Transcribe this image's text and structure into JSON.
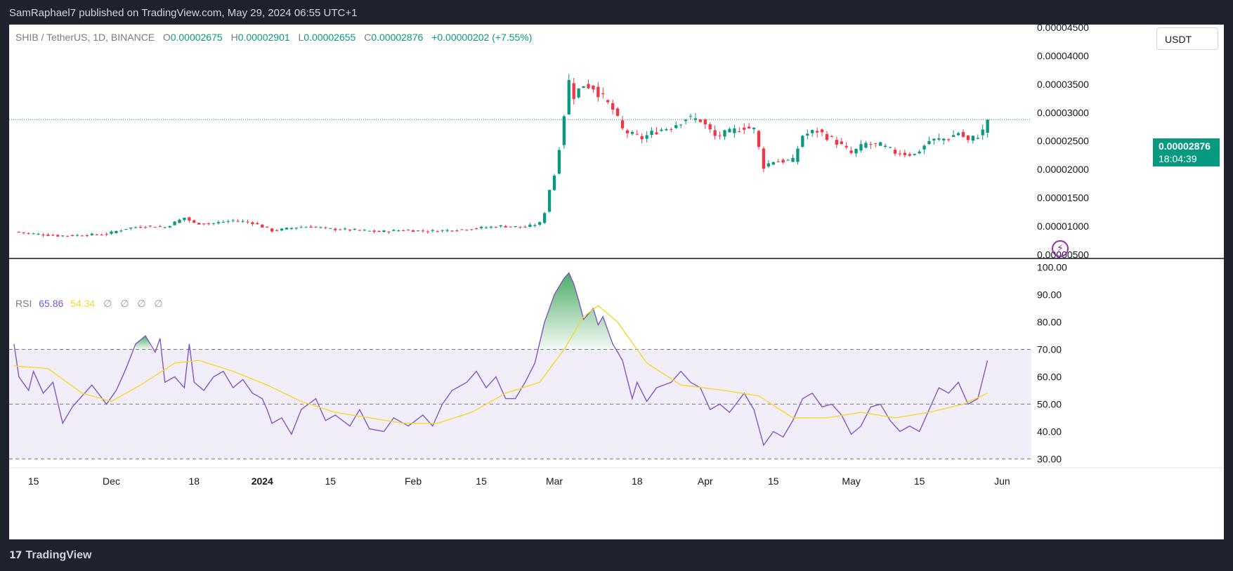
{
  "header": {
    "published_text": "SamRaphael7 published on TradingView.com, May 29, 2024 06:55 UTC+1"
  },
  "footer": {
    "brand": "TradingView",
    "logo_mark": "17"
  },
  "legend": {
    "symbol": "SHIB / TetherUS, 1D, BINANCE",
    "open_key": "O",
    "open": "0.00002675",
    "high_key": "H",
    "high": "0.00002901",
    "low_key": "L",
    "low": "0.00002655",
    "close_key": "C",
    "close": "0.00002876",
    "change": "+0.00000202 (+7.55%)"
  },
  "rsi_legend": {
    "name": "RSI",
    "rsi": "65.86",
    "ma": "54.34",
    "extras": [
      "∅",
      "∅",
      "∅",
      "∅"
    ]
  },
  "currency_button": "USDT",
  "price_badge": {
    "price": "0.00002876",
    "countdown": "18:04:39"
  },
  "alert_glyph": "⚡",
  "colors": {
    "up": "#089981",
    "down": "#f23645",
    "rsi_line": "#7e57c2",
    "rsi_ma": "#f7d72c",
    "rsi_band": "#7e57c2",
    "overbought_fill": "#2e9d4a"
  },
  "chart_data": [
    {
      "type": "candlestick",
      "title": "",
      "y_axis": {
        "ticks": [
          5e-06,
          1e-05,
          1.5e-05,
          2e-05,
          2.5e-05,
          3e-05,
          3.5e-05,
          4e-05,
          4.5e-05
        ],
        "tick_labels": [
          "0.00000500",
          "0.00001000",
          "0.00001500",
          "0.00002000",
          "0.00002500",
          "0.00003000",
          "0.00003500",
          "0.00004000",
          "0.00004500"
        ],
        "ylim": [
          4.3e-06,
          4.55e-05
        ]
      },
      "last_price": 2.876e-05,
      "series": [
        {
          "anchors": [
            [
              "2023-11-11",
              9e-06
            ],
            [
              "2023-11-14",
              8.7e-06
            ],
            [
              "2023-11-20",
              8.3e-06
            ],
            [
              "2023-11-25",
              8.4e-06
            ],
            [
              "2023-11-30",
              8.6e-06
            ],
            [
              "2023-12-04",
              9.6e-06
            ],
            [
              "2023-12-08",
              1e-05
            ],
            [
              "2023-12-12",
              9.8e-06
            ],
            [
              "2023-12-16",
              1.15e-05
            ],
            [
              "2023-12-18",
              1.05e-05
            ],
            [
              "2023-12-22",
              1.05e-05
            ],
            [
              "2023-12-26",
              1.1e-05
            ],
            [
              "2023-12-30",
              1.06e-05
            ],
            [
              "2024-01-03",
              9.2e-06
            ],
            [
              "2024-01-05",
              9.4e-06
            ],
            [
              "2024-01-08",
              9.8e-06
            ],
            [
              "2024-01-11",
              9.9e-06
            ],
            [
              "2024-01-15",
              9.5e-06
            ],
            [
              "2024-01-20",
              9.3e-06
            ],
            [
              "2024-01-25",
              9e-06
            ],
            [
              "2024-01-30",
              9.3e-06
            ],
            [
              "2024-02-04",
              9.1e-06
            ],
            [
              "2024-02-09",
              9.3e-06
            ],
            [
              "2024-02-14",
              9.6e-06
            ],
            [
              "2024-02-19",
              1e-05
            ],
            [
              "2024-02-24",
              9.8e-06
            ],
            [
              "2024-02-27",
              1.05e-05
            ],
            [
              "2024-02-28",
              1.25e-05
            ],
            [
              "2024-02-29",
              1.65e-05
            ],
            [
              "2024-03-01",
              1.9e-05
            ],
            [
              "2024-03-02",
              2.4e-05
            ],
            [
              "2024-03-04",
              3.55e-05
            ],
            [
              "2024-03-05",
              3.3e-05
            ],
            [
              "2024-03-07",
              3.5e-05
            ],
            [
              "2024-03-09",
              3.45e-05
            ],
            [
              "2024-03-11",
              3.25e-05
            ],
            [
              "2024-03-13",
              3.05e-05
            ],
            [
              "2024-03-15",
              2.7e-05
            ],
            [
              "2024-03-17",
              2.6e-05
            ],
            [
              "2024-03-19",
              2.55e-05
            ],
            [
              "2024-03-22",
              2.68e-05
            ],
            [
              "2024-03-25",
              2.75e-05
            ],
            [
              "2024-03-28",
              2.9e-05
            ],
            [
              "2024-03-31",
              2.87e-05
            ],
            [
              "2024-04-03",
              2.58e-05
            ],
            [
              "2024-04-06",
              2.65e-05
            ],
            [
              "2024-04-09",
              2.75e-05
            ],
            [
              "2024-04-11",
              2.7e-05
            ],
            [
              "2024-04-13",
              2.05e-05
            ],
            [
              "2024-04-15",
              2.15e-05
            ],
            [
              "2024-04-19",
              2.15e-05
            ],
            [
              "2024-04-21",
              2.6e-05
            ],
            [
              "2024-04-24",
              2.68e-05
            ],
            [
              "2024-04-28",
              2.48e-05
            ],
            [
              "2024-05-01",
              2.28e-05
            ],
            [
              "2024-05-04",
              2.45e-05
            ],
            [
              "2024-05-07",
              2.42e-05
            ],
            [
              "2024-05-10",
              2.3e-05
            ],
            [
              "2024-05-14",
              2.26e-05
            ],
            [
              "2024-05-17",
              2.5e-05
            ],
            [
              "2024-05-21",
              2.55e-05
            ],
            [
              "2024-05-23",
              2.65e-05
            ],
            [
              "2024-05-25",
              2.5e-05
            ],
            [
              "2024-05-27",
              2.6e-05
            ],
            [
              "2024-05-28",
              2.67e-05
            ],
            [
              "2024-05-29",
              2.876e-05
            ]
          ]
        }
      ]
    },
    {
      "type": "line",
      "title": "",
      "y_axis": {
        "ticks": [
          30,
          40,
          50,
          60,
          70,
          80,
          90,
          100
        ],
        "tick_labels": [
          "30.00",
          "40.00",
          "50.00",
          "60.00",
          "70.00",
          "80.00",
          "90.00",
          "100.00"
        ],
        "ylim": [
          27,
          103
        ]
      },
      "bands": {
        "upper": 70,
        "middle": 50,
        "lower": 30
      },
      "series": [
        {
          "name": "RSI",
          "color": "#7e57c2",
          "anchors": [
            [
              "2023-11-11",
              72
            ],
            [
              "2023-11-12",
              60
            ],
            [
              "2023-11-14",
              55
            ],
            [
              "2023-11-15",
              62
            ],
            [
              "2023-11-17",
              54
            ],
            [
              "2023-11-19",
              58
            ],
            [
              "2023-11-21",
              43
            ],
            [
              "2023-11-23",
              49
            ],
            [
              "2023-11-27",
              57
            ],
            [
              "2023-11-30",
              50
            ],
            [
              "2023-12-02",
              55
            ],
            [
              "2023-12-04",
              63
            ],
            [
              "2023-12-06",
              72
            ],
            [
              "2023-12-08",
              75
            ],
            [
              "2023-12-10",
              69
            ],
            [
              "2023-12-11",
              74
            ],
            [
              "2023-12-12",
              58
            ],
            [
              "2023-12-14",
              60
            ],
            [
              "2023-12-16",
              56
            ],
            [
              "2023-12-17",
              72
            ],
            [
              "2023-12-18",
              58
            ],
            [
              "2023-12-20",
              55
            ],
            [
              "2023-12-22",
              60
            ],
            [
              "2023-12-24",
              62
            ],
            [
              "2023-12-26",
              56
            ],
            [
              "2023-12-28",
              59
            ],
            [
              "2023-12-30",
              54
            ],
            [
              "2024-01-01",
              52
            ],
            [
              "2024-01-02",
              48
            ],
            [
              "2024-01-03",
              43
            ],
            [
              "2024-01-05",
              45
            ],
            [
              "2024-01-07",
              39
            ],
            [
              "2024-01-09",
              48
            ],
            [
              "2024-01-12",
              52
            ],
            [
              "2024-01-14",
              44
            ],
            [
              "2024-01-16",
              46
            ],
            [
              "2024-01-19",
              42
            ],
            [
              "2024-01-21",
              48
            ],
            [
              "2024-01-23",
              41
            ],
            [
              "2024-01-26",
              40
            ],
            [
              "2024-01-28",
              45
            ],
            [
              "2024-01-31",
              42
            ],
            [
              "2024-02-03",
              46
            ],
            [
              "2024-02-05",
              42
            ],
            [
              "2024-02-07",
              50
            ],
            [
              "2024-02-09",
              55
            ],
            [
              "2024-02-12",
              58
            ],
            [
              "2024-02-14",
              62
            ],
            [
              "2024-02-16",
              56
            ],
            [
              "2024-02-18",
              60
            ],
            [
              "2024-02-20",
              52
            ],
            [
              "2024-02-22",
              52
            ],
            [
              "2024-02-24",
              58
            ],
            [
              "2024-02-26",
              65
            ],
            [
              "2024-02-28",
              80
            ],
            [
              "2024-03-01",
              90
            ],
            [
              "2024-03-03",
              96
            ],
            [
              "2024-03-04",
              98
            ],
            [
              "2024-03-05",
              94
            ],
            [
              "2024-03-06",
              88
            ],
            [
              "2024-03-07",
              81
            ],
            [
              "2024-03-09",
              85
            ],
            [
              "2024-03-10",
              79
            ],
            [
              "2024-03-11",
              82
            ],
            [
              "2024-03-13",
              72
            ],
            [
              "2024-03-15",
              66
            ],
            [
              "2024-03-17",
              52
            ],
            [
              "2024-03-18",
              58
            ],
            [
              "2024-03-20",
              51
            ],
            [
              "2024-03-22",
              56
            ],
            [
              "2024-03-25",
              58
            ],
            [
              "2024-03-27",
              62
            ],
            [
              "2024-03-29",
              58
            ],
            [
              "2024-03-31",
              56
            ],
            [
              "2024-04-02",
              48
            ],
            [
              "2024-04-04",
              50
            ],
            [
              "2024-04-06",
              47
            ],
            [
              "2024-04-09",
              54
            ],
            [
              "2024-04-11",
              48
            ],
            [
              "2024-04-13",
              35
            ],
            [
              "2024-04-15",
              40
            ],
            [
              "2024-04-17",
              38
            ],
            [
              "2024-04-19",
              44
            ],
            [
              "2024-04-21",
              52
            ],
            [
              "2024-04-23",
              54
            ],
            [
              "2024-04-25",
              49
            ],
            [
              "2024-04-27",
              50
            ],
            [
              "2024-04-29",
              46
            ],
            [
              "2024-05-01",
              39
            ],
            [
              "2024-05-03",
              42
            ],
            [
              "2024-05-05",
              49
            ],
            [
              "2024-05-07",
              50
            ],
            [
              "2024-05-09",
              44
            ],
            [
              "2024-05-11",
              40
            ],
            [
              "2024-05-13",
              42
            ],
            [
              "2024-05-15",
              40
            ],
            [
              "2024-05-17",
              48
            ],
            [
              "2024-05-19",
              56
            ],
            [
              "2024-05-21",
              54
            ],
            [
              "2024-05-23",
              58
            ],
            [
              "2024-05-25",
              50
            ],
            [
              "2024-05-27",
              52
            ],
            [
              "2024-05-29",
              66
            ]
          ]
        },
        {
          "name": "RSI-based MA",
          "color": "#f7d72c",
          "anchors": [
            [
              "2023-11-11",
              64
            ],
            [
              "2023-11-18",
              63
            ],
            [
              "2023-11-25",
              54
            ],
            [
              "2023-12-01",
              51
            ],
            [
              "2023-12-07",
              57
            ],
            [
              "2023-12-14",
              65
            ],
            [
              "2023-12-19",
              66
            ],
            [
              "2023-12-26",
              62
            ],
            [
              "2024-01-02",
              57
            ],
            [
              "2024-01-09",
              51
            ],
            [
              "2024-01-16",
              47
            ],
            [
              "2024-01-23",
              45
            ],
            [
              "2024-01-30",
              43
            ],
            [
              "2024-02-06",
              43
            ],
            [
              "2024-02-13",
              47
            ],
            [
              "2024-02-20",
              54
            ],
            [
              "2024-02-27",
              58
            ],
            [
              "2024-03-03",
              70
            ],
            [
              "2024-03-07",
              82
            ],
            [
              "2024-03-10",
              86
            ],
            [
              "2024-03-14",
              80
            ],
            [
              "2024-03-20",
              65
            ],
            [
              "2024-03-27",
              57
            ],
            [
              "2024-04-05",
              55
            ],
            [
              "2024-04-12",
              53
            ],
            [
              "2024-04-19",
              45
            ],
            [
              "2024-04-26",
              45
            ],
            [
              "2024-05-03",
              47
            ],
            [
              "2024-05-10",
              45
            ],
            [
              "2024-05-17",
              47
            ],
            [
              "2024-05-24",
              50
            ],
            [
              "2024-05-29",
              54
            ]
          ]
        }
      ]
    }
  ],
  "x_axis": {
    "start": "2023-11-10",
    "end": "2024-06-07",
    "ticks": [
      {
        "date": "2023-11-15",
        "label": "15",
        "bold": false
      },
      {
        "date": "2023-12-01",
        "label": "Dec",
        "bold": false
      },
      {
        "date": "2023-12-18",
        "label": "18",
        "bold": false
      },
      {
        "date": "2024-01-01",
        "label": "2024",
        "bold": true
      },
      {
        "date": "2024-01-15",
        "label": "15",
        "bold": false
      },
      {
        "date": "2024-02-01",
        "label": "Feb",
        "bold": false
      },
      {
        "date": "2024-02-15",
        "label": "15",
        "bold": false
      },
      {
        "date": "2024-03-01",
        "label": "Mar",
        "bold": false
      },
      {
        "date": "2024-03-18",
        "label": "18",
        "bold": false
      },
      {
        "date": "2024-04-01",
        "label": "Apr",
        "bold": false
      },
      {
        "date": "2024-04-15",
        "label": "15",
        "bold": false
      },
      {
        "date": "2024-05-01",
        "label": "May",
        "bold": false
      },
      {
        "date": "2024-05-15",
        "label": "15",
        "bold": false
      },
      {
        "date": "2024-06-01",
        "label": "Jun",
        "bold": false
      }
    ]
  }
}
